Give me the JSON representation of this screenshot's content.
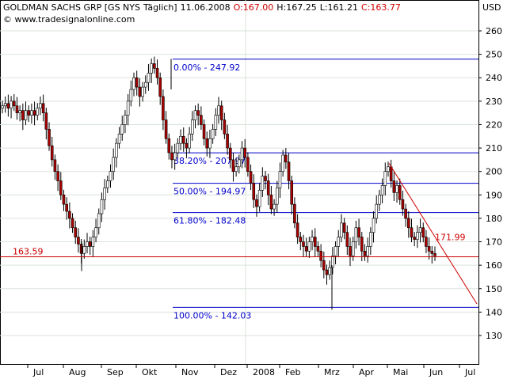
{
  "header": {
    "instrument": "GOLDMAN SACHS GRP [GS NYS",
    "period": "Täglich]",
    "date": "11.06.2008",
    "open": "O:167.00",
    "high": "H:167.25",
    "low": "L:161.21",
    "close": "C:163.77",
    "source": "© www.tradesignalonline.com"
  },
  "currency_label": "USD",
  "chart_data": {
    "type": "candlestick",
    "ylim": [
      120,
      265
    ],
    "y_ticks": [
      130,
      140,
      150,
      160,
      170,
      180,
      190,
      200,
      210,
      220,
      230,
      240,
      250,
      260
    ],
    "x_labels": [
      "Jul",
      "Aug",
      "Sep",
      "Okt",
      "Nov",
      "Dez",
      "2008",
      "Feb",
      "Mrz",
      "Apr",
      "Mai",
      "Jun",
      "Jul"
    ],
    "grid": true,
    "last_price": 163.59,
    "trendline_label": 171.99,
    "fibonacci": [
      {
        "label": "0.00% - 247.92",
        "value": 247.92
      },
      {
        "label": "38.20% - 207.97",
        "value": 207.97
      },
      {
        "label": "50.00% - 194.97",
        "value": 194.97
      },
      {
        "label": "61.80% - 182.48",
        "value": 182.48
      },
      {
        "label": "100.00% - 142.03",
        "value": 142.03
      }
    ],
    "close_series": [
      228,
      229,
      227,
      230,
      228,
      225,
      226,
      222,
      226,
      224,
      226,
      224,
      227,
      229,
      225,
      218,
      211,
      205,
      200,
      196,
      190,
      186,
      183,
      180,
      176,
      172,
      169,
      165,
      168,
      170,
      168,
      172,
      176,
      182,
      188,
      193,
      196,
      200,
      206,
      212,
      216,
      220,
      224,
      230,
      235,
      240,
      236,
      232,
      236,
      238,
      242,
      246,
      244,
      240,
      232,
      222,
      214,
      208,
      205,
      208,
      212,
      215,
      212,
      210,
      216,
      222,
      226,
      224,
      220,
      214,
      210,
      214,
      218,
      224,
      228,
      222,
      216,
      210,
      205,
      200,
      202,
      205,
      210,
      206,
      200,
      195,
      188,
      185,
      192,
      198,
      196,
      190,
      184,
      186,
      193,
      200,
      207,
      204,
      196,
      186,
      178,
      172,
      170,
      168,
      166,
      170,
      172,
      168,
      166,
      162,
      158,
      156,
      159,
      164,
      168,
      172,
      178,
      174,
      168,
      164,
      170,
      176,
      172,
      166,
      164,
      168,
      174,
      180,
      186,
      190,
      194,
      200,
      202,
      196,
      191,
      194,
      188,
      184,
      180,
      176,
      172,
      171,
      174,
      176,
      172,
      168,
      166,
      165,
      164
    ]
  }
}
